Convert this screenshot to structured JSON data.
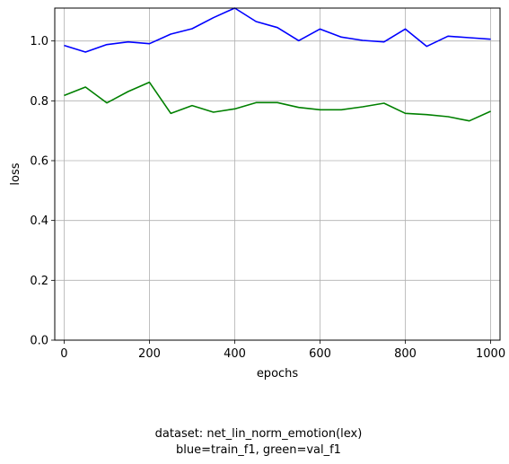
{
  "chart_data": {
    "type": "line",
    "title": "",
    "xlabel": "epochs",
    "ylabel": "loss",
    "xlim": [
      -22,
      1022
    ],
    "ylim": [
      0,
      1.11
    ],
    "x_ticks": [
      0,
      200,
      400,
      600,
      800,
      1000
    ],
    "x_tick_labels": [
      "0",
      "200",
      "400",
      "600",
      "800",
      "1000"
    ],
    "y_ticks": [
      0.0,
      0.2,
      0.4,
      0.6,
      0.8,
      1.0
    ],
    "y_tick_labels": [
      "0.0",
      "0.2",
      "0.4",
      "0.6",
      "0.8",
      "1.0"
    ],
    "grid": true,
    "legend": "none",
    "x": [
      0,
      50,
      100,
      150,
      200,
      250,
      300,
      350,
      400,
      450,
      500,
      550,
      600,
      650,
      700,
      750,
      800,
      850,
      900,
      950,
      1000
    ],
    "series": [
      {
        "color": "#0000ff",
        "values": [
          0.985,
          0.963,
          0.988,
          0.997,
          0.991,
          1.023,
          1.041,
          1.078,
          1.11,
          1.065,
          1.045,
          1.001,
          1.04,
          1.013,
          1.002,
          0.997,
          1.04,
          0.982,
          1.016,
          1.011,
          1.006
        ]
      },
      {
        "color": "#008000",
        "values": [
          0.818,
          0.846,
          0.793,
          0.831,
          0.862,
          0.758,
          0.784,
          0.762,
          0.773,
          0.794,
          0.794,
          0.778,
          0.77,
          0.77,
          0.78,
          0.792,
          0.758,
          0.754,
          0.747,
          0.733,
          0.765
        ]
      }
    ]
  },
  "caption": {
    "line1": "dataset: net_lin_norm_emotion(lex)",
    "line2": "blue=train_f1, green=val_f1"
  }
}
